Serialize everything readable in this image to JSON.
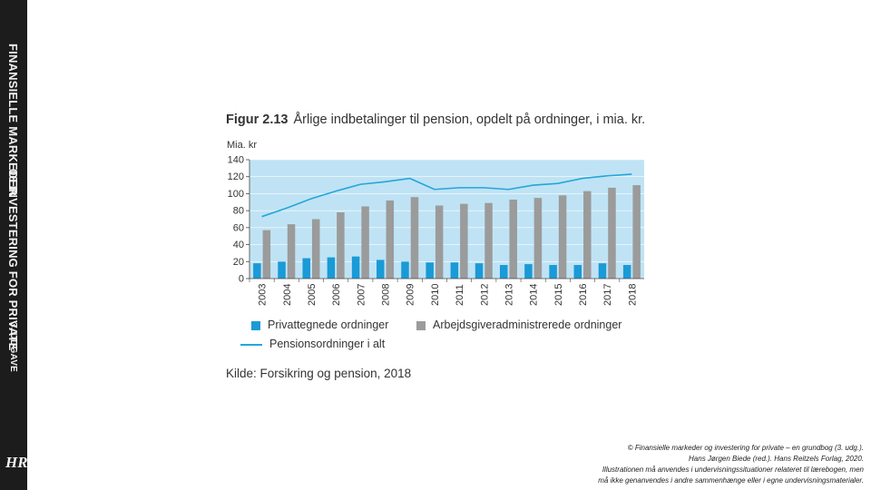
{
  "sidebar": {
    "title_line_1": "FINANSIELLE MARKEDER",
    "title_line_2": "06 INVESTERING FOR PRIVATE",
    "edition": "3. UDGAVE",
    "logo": "HR"
  },
  "figure": {
    "label": "Figur 2.13",
    "title": "Årlige indbetalinger til pension, opdelt på ordninger, i mia. kr.",
    "source": "Kilde: Forsikring og pension, 2018"
  },
  "colors": {
    "privat": "#1a9ad6",
    "arbejdsgiver": "#9b9b9b",
    "line": "#25a6d8",
    "background": "#bfe3f5"
  },
  "chart_data": {
    "type": "bar",
    "ylabel": "Mia. kr",
    "ylim": [
      0,
      140
    ],
    "yticks": [
      0,
      20,
      40,
      60,
      80,
      100,
      120,
      140
    ],
    "categories": [
      "2003",
      "2004",
      "2005",
      "2006",
      "2007",
      "2008",
      "2009",
      "2010",
      "2011",
      "2012",
      "2013",
      "2014",
      "2015",
      "2016",
      "2017",
      "2018"
    ],
    "series": [
      {
        "name": "Privattegnede ordninger",
        "kind": "bar",
        "values": [
          18,
          20,
          24,
          25,
          26,
          22,
          20,
          19,
          19,
          18,
          16,
          17,
          16,
          16,
          18,
          16
        ]
      },
      {
        "name": "Arbejdsgiveradministrerede ordninger",
        "kind": "bar",
        "values": [
          57,
          64,
          70,
          78,
          85,
          92,
          96,
          86,
          88,
          89,
          93,
          95,
          98,
          103,
          107,
          110
        ]
      },
      {
        "name": "Pensionsordninger i alt",
        "kind": "line",
        "values": [
          73,
          83,
          94,
          103,
          111,
          114,
          118,
          105,
          107,
          107,
          105,
          110,
          112,
          118,
          121,
          123
        ]
      }
    ],
    "legend_position": "bottom"
  },
  "copyright": {
    "line_1": "© Finansielle markeder og investering for private – en grundbog (3. udg.).",
    "line_2": "Hans Jørgen Biede (red.). Hans Reitzels Forlag, 2020.",
    "line_3": "Illustrationen må anvendes i undervisningssituationer relateret til lærebogen, men",
    "line_4": "må ikke genanvendes i andre sammenhænge eller i egne undervisningsmaterialer."
  }
}
